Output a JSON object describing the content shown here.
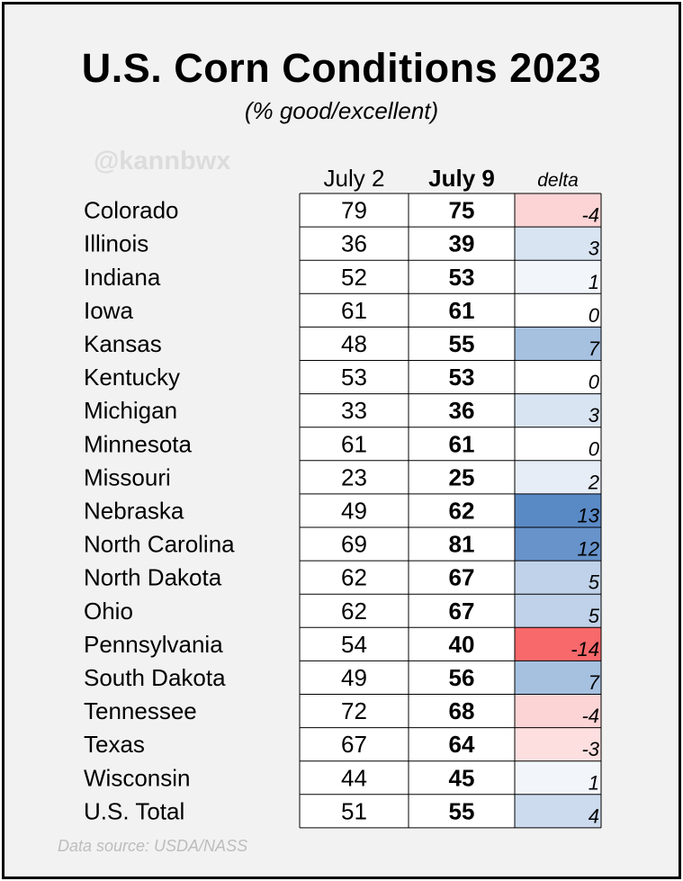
{
  "title": "U.S. Corn Conditions 2023",
  "subtitle": "(% good/excellent)",
  "watermark": "@kannbwx",
  "footnote": "Data source: USDA/NASS",
  "colors": {
    "negative": "#f8696b",
    "positive": "#5a8ac6",
    "zero": "#ffffff",
    "frame": "#000000",
    "panel": "#f2f2f2"
  },
  "chart_data": {
    "type": "table",
    "columns": [
      "July 2",
      "July 9",
      "delta"
    ],
    "rows": [
      {
        "state": "Colorado",
        "july2": 79,
        "july9": 75,
        "delta": -4
      },
      {
        "state": "Illinois",
        "july2": 36,
        "july9": 39,
        "delta": 3
      },
      {
        "state": "Indiana",
        "july2": 52,
        "july9": 53,
        "delta": 1
      },
      {
        "state": "Iowa",
        "july2": 61,
        "july9": 61,
        "delta": 0
      },
      {
        "state": "Kansas",
        "july2": 48,
        "july9": 55,
        "delta": 7
      },
      {
        "state": "Kentucky",
        "july2": 53,
        "july9": 53,
        "delta": 0
      },
      {
        "state": "Michigan",
        "july2": 33,
        "july9": 36,
        "delta": 3
      },
      {
        "state": "Minnesota",
        "july2": 61,
        "july9": 61,
        "delta": 0
      },
      {
        "state": "Missouri",
        "july2": 23,
        "july9": 25,
        "delta": 2
      },
      {
        "state": "Nebraska",
        "july2": 49,
        "july9": 62,
        "delta": 13
      },
      {
        "state": "North Carolina",
        "july2": 69,
        "july9": 81,
        "delta": 12
      },
      {
        "state": "North Dakota",
        "july2": 62,
        "july9": 67,
        "delta": 5
      },
      {
        "state": "Ohio",
        "july2": 62,
        "july9": 67,
        "delta": 5
      },
      {
        "state": "Pennsylvania",
        "july2": 54,
        "july9": 40,
        "delta": -14
      },
      {
        "state": "South Dakota",
        "july2": 49,
        "july9": 56,
        "delta": 7
      },
      {
        "state": "Tennessee",
        "july2": 72,
        "july9": 68,
        "delta": -4
      },
      {
        "state": "Texas",
        "july2": 67,
        "july9": 64,
        "delta": -3
      },
      {
        "state": "Wisconsin",
        "july2": 44,
        "july9": 45,
        "delta": 1
      },
      {
        "state": "U.S. Total",
        "july2": 51,
        "july9": 55,
        "delta": 4
      }
    ],
    "color_scale": {
      "min": -14,
      "max": 13
    }
  }
}
